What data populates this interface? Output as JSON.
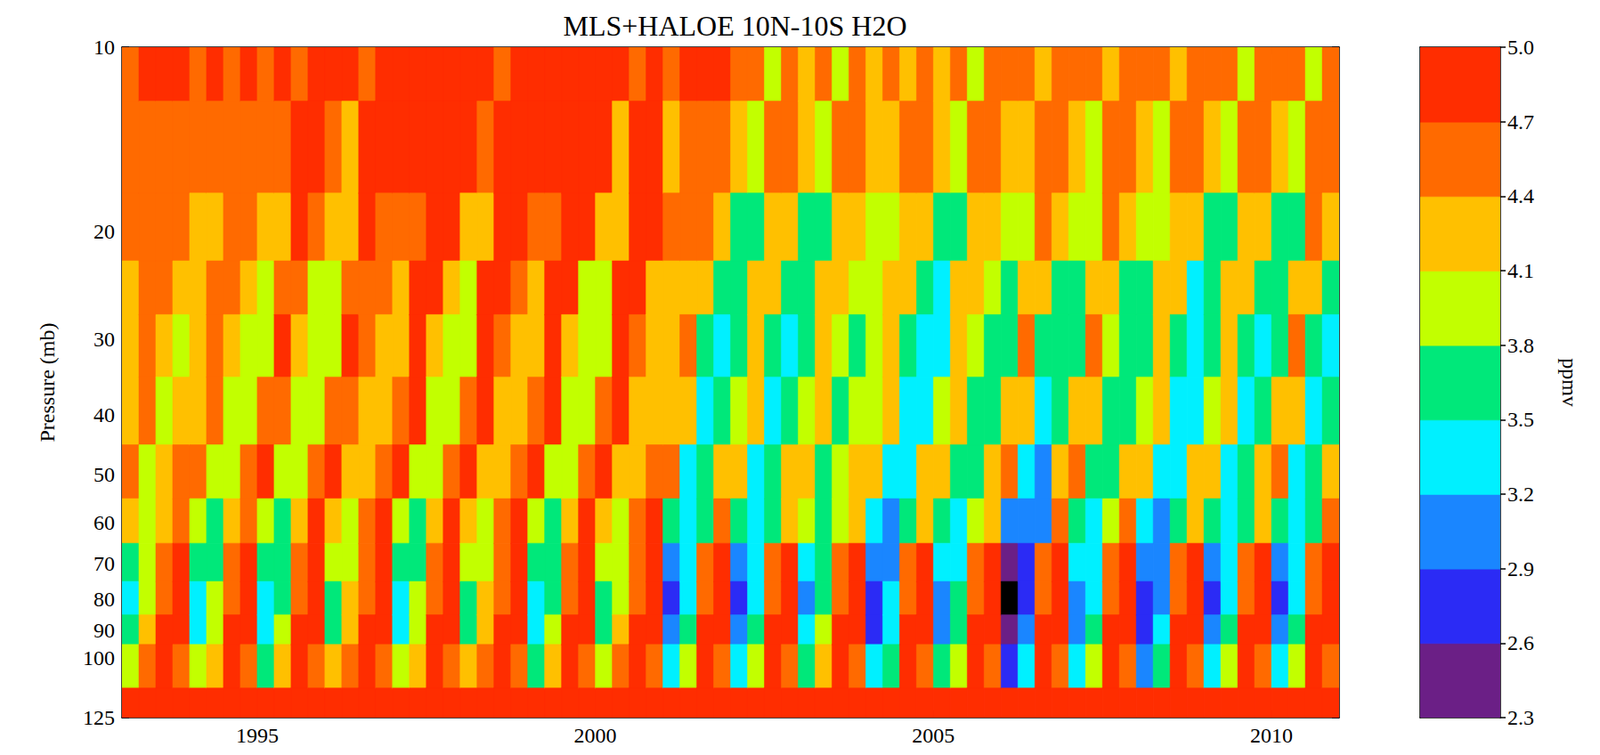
{
  "chart_data": {
    "type": "heatmap",
    "title": "MLS+HALOE 10N-10S H2O",
    "y_label": "Pressure (mb)",
    "log": "y",
    "grid": false,
    "xlim": [
      1993,
      2011
    ],
    "xticks": [
      1995,
      2000,
      2005,
      2010
    ],
    "ylim": [
      125,
      10
    ],
    "yticks": [
      10,
      20,
      30,
      40,
      50,
      60,
      70,
      80,
      90,
      100,
      125
    ],
    "x": [
      1993,
      1993.25,
      1993.5,
      1993.75,
      1994,
      1994.25,
      1994.5,
      1994.75,
      1995,
      1995.25,
      1995.5,
      1995.75,
      1996,
      1996.25,
      1996.5,
      1996.75,
      1997,
      1997.25,
      1997.5,
      1997.75,
      1998,
      1998.25,
      1998.5,
      1998.75,
      1999,
      1999.25,
      1999.5,
      1999.75,
      2000,
      2000.25,
      2000.5,
      2000.75,
      2001,
      2001.25,
      2001.5,
      2001.75,
      2002,
      2002.25,
      2002.5,
      2002.75,
      2003,
      2003.25,
      2003.5,
      2003.75,
      2004,
      2004.25,
      2004.5,
      2004.75,
      2005,
      2005.25,
      2005.5,
      2005.75,
      2006,
      2006.25,
      2006.5,
      2006.75,
      2007,
      2007.25,
      2007.5,
      2007.75,
      2008,
      2008.25,
      2008.5,
      2008.75,
      2009,
      2009.25,
      2009.5,
      2009.75,
      2010,
      2010.25,
      2010.5,
      2010.75
    ],
    "y": [
      10,
      15,
      20,
      25,
      30,
      40,
      50,
      60,
      70,
      80,
      90,
      100,
      125
    ],
    "values": [
      [
        4.5,
        4.5,
        4.4,
        4.2,
        4.2,
        4.3,
        4.6,
        4.1,
        3.7,
        3.4,
        3.5,
        3.9,
        5.2
      ],
      [
        4.7,
        4.6,
        4.4,
        4.5,
        4.6,
        4.5,
        4.0,
        3.8,
        3.8,
        3.9,
        4.1,
        4.4,
        5.2
      ],
      [
        4.7,
        4.6,
        4.6,
        4.5,
        4.3,
        4.0,
        4.1,
        4.3,
        4.4,
        4.6,
        4.8,
        4.9,
        5.2
      ],
      [
        4.7,
        4.6,
        4.5,
        4.2,
        4.0,
        4.1,
        4.4,
        4.6,
        4.7,
        4.8,
        4.9,
        4.6,
        5.2
      ],
      [
        4.5,
        4.5,
        4.3,
        4.1,
        4.1,
        4.3,
        4.6,
        4.0,
        3.6,
        3.3,
        3.4,
        3.8,
        5.2
      ],
      [
        4.7,
        4.5,
        4.3,
        4.5,
        4.6,
        4.5,
        3.9,
        3.7,
        3.7,
        3.8,
        4.0,
        4.3,
        5.2
      ],
      [
        4.6,
        4.6,
        4.6,
        4.5,
        4.2,
        3.9,
        4.0,
        4.2,
        4.4,
        4.6,
        4.8,
        4.9,
        5.2
      ],
      [
        4.7,
        4.6,
        4.5,
        4.1,
        3.9,
        4.0,
        4.4,
        4.6,
        4.7,
        4.8,
        4.9,
        4.6,
        5.2
      ],
      [
        4.6,
        4.6,
        4.2,
        4.0,
        4.0,
        4.4,
        4.7,
        3.9,
        3.5,
        3.2,
        3.3,
        3.7,
        5.2
      ],
      [
        4.8,
        4.4,
        4.2,
        4.6,
        4.7,
        4.6,
        3.8,
        3.6,
        3.6,
        3.7,
        3.9,
        4.2,
        5.2
      ],
      [
        4.5,
        4.7,
        4.7,
        4.6,
        4.1,
        3.8,
        3.9,
        4.1,
        4.4,
        4.6,
        4.8,
        4.9,
        5.2
      ],
      [
        4.8,
        4.7,
        4.6,
        4.0,
        3.8,
        3.9,
        4.5,
        4.7,
        4.7,
        4.8,
        4.9,
        4.6,
        5.2
      ],
      [
        4.7,
        4.6,
        4.1,
        3.9,
        3.9,
        4.4,
        4.7,
        4.3,
        3.9,
        3.6,
        3.7,
        4.1,
        5.2
      ],
      [
        4.9,
        4.3,
        4.1,
        4.6,
        4.7,
        4.6,
        4.2,
        4.0,
        4.0,
        4.1,
        4.3,
        4.6,
        5.2
      ],
      [
        4.4,
        4.8,
        4.7,
        4.6,
        4.5,
        4.2,
        4.3,
        4.5,
        4.4,
        4.6,
        4.8,
        4.9,
        5.2
      ],
      [
        4.9,
        4.8,
        4.6,
        4.4,
        4.2,
        4.3,
        4.5,
        4.7,
        4.7,
        4.8,
        4.9,
        4.6,
        5.2
      ],
      [
        4.7,
        4.7,
        4.5,
        4.3,
        4.3,
        4.5,
        4.8,
        4.0,
        3.6,
        3.3,
        3.4,
        3.8,
        5.2
      ],
      [
        4.9,
        4.7,
        4.5,
        4.7,
        4.8,
        4.7,
        3.9,
        3.7,
        3.7,
        3.8,
        4.0,
        4.3,
        5.2
      ],
      [
        4.8,
        4.8,
        4.8,
        4.7,
        4.2,
        3.9,
        4.0,
        4.2,
        4.4,
        4.6,
        4.8,
        4.9,
        5.2
      ],
      [
        4.9,
        4.8,
        4.7,
        4.1,
        3.9,
        4.0,
        4.6,
        4.8,
        4.7,
        4.8,
        4.9,
        4.6,
        5.2
      ],
      [
        4.7,
        4.7,
        4.2,
        4.0,
        4.0,
        4.5,
        4.8,
        4.3,
        3.9,
        3.6,
        3.7,
        4.1,
        5.2
      ],
      [
        4.9,
        4.4,
        4.2,
        4.7,
        4.8,
        4.7,
        4.2,
        4.0,
        4.0,
        4.1,
        4.3,
        4.6,
        5.2
      ],
      [
        4.5,
        4.8,
        4.8,
        4.7,
        4.5,
        4.2,
        4.3,
        4.5,
        4.4,
        4.6,
        4.8,
        4.9,
        5.2
      ],
      [
        4.9,
        4.8,
        4.7,
        4.4,
        4.2,
        4.3,
        4.6,
        4.8,
        4.7,
        4.8,
        4.9,
        4.6,
        5.2
      ],
      [
        4.7,
        4.7,
        4.5,
        4.3,
        4.3,
        4.5,
        4.8,
        3.9,
        3.5,
        3.2,
        3.3,
        3.7,
        5.2
      ],
      [
        4.9,
        4.7,
        4.5,
        4.7,
        4.8,
        4.7,
        3.8,
        3.6,
        3.6,
        3.7,
        3.9,
        4.2,
        5.2
      ],
      [
        4.8,
        4.8,
        4.8,
        4.7,
        4.1,
        3.8,
        3.9,
        4.1,
        4.4,
        4.6,
        4.8,
        4.9,
        5.2
      ],
      [
        4.9,
        4.8,
        4.7,
        4.0,
        3.8,
        3.9,
        4.6,
        4.8,
        4.7,
        4.8,
        4.9,
        4.6,
        5.2
      ],
      [
        4.7,
        4.7,
        4.1,
        3.9,
        3.9,
        4.5,
        4.8,
        4.2,
        3.8,
        3.5,
        3.6,
        4.0,
        5.2
      ],
      [
        4.9,
        4.3,
        4.1,
        4.7,
        4.8,
        4.7,
        4.1,
        3.9,
        3.9,
        4.0,
        4.2,
        4.5,
        5.2
      ],
      [
        4.4,
        4.8,
        4.8,
        4.7,
        4.4,
        4.1,
        4.2,
        4.4,
        4.4,
        4.6,
        4.8,
        4.9,
        5.2
      ],
      [
        4.9,
        4.8,
        4.7,
        4.3,
        4.1,
        4.2,
        4.6,
        4.8,
        4.7,
        4.8,
        4.9,
        4.5,
        5.2
      ],
      [
        4.5,
        4.3,
        4.4,
        4.2,
        4.2,
        4.1,
        4.4,
        3.5,
        3.1,
        2.8,
        2.9,
        3.3,
        5.2
      ],
      [
        4.7,
        4.6,
        4.4,
        4.3,
        4.4,
        4.3,
        3.4,
        3.2,
        3.2,
        3.3,
        3.5,
        3.8,
        5.2
      ],
      [
        4.7,
        4.6,
        4.4,
        4.3,
        3.7,
        3.4,
        3.5,
        3.7,
        4.4,
        4.6,
        4.8,
        4.9,
        5.2
      ],
      [
        4.7,
        4.6,
        4.3,
        3.6,
        3.4,
        3.5,
        4.2,
        4.4,
        4.7,
        4.8,
        4.9,
        4.6,
        5.2
      ],
      [
        4.4,
        4.2,
        3.7,
        3.5,
        3.5,
        4.0,
        4.3,
        3.5,
        3.1,
        2.8,
        2.9,
        3.3,
        5.2
      ],
      [
        4.6,
        3.9,
        3.7,
        4.2,
        4.3,
        4.2,
        3.4,
        3.2,
        3.2,
        3.3,
        3.5,
        3.8,
        5.2
      ],
      [
        4.0,
        4.5,
        4.3,
        4.2,
        3.7,
        3.4,
        3.5,
        3.7,
        4.4,
        4.6,
        4.8,
        4.9,
        5.2
      ],
      [
        4.6,
        4.5,
        4.2,
        3.6,
        3.4,
        3.5,
        4.1,
        4.3,
        4.7,
        4.8,
        4.9,
        4.6,
        5.2
      ],
      [
        4.3,
        4.2,
        3.7,
        3.5,
        3.5,
        4.0,
        4.3,
        3.8,
        3.4,
        3.1,
        3.2,
        3.6,
        5.2
      ],
      [
        4.5,
        3.9,
        3.7,
        4.2,
        4.3,
        4.2,
        3.7,
        3.5,
        3.5,
        3.6,
        3.8,
        4.1,
        5.2
      ],
      [
        4.0,
        4.4,
        4.3,
        4.2,
        4.0,
        3.7,
        3.8,
        4.0,
        4.4,
        4.6,
        4.8,
        4.9,
        5.2
      ],
      [
        4.5,
        4.4,
        4.2,
        3.9,
        3.7,
        3.8,
        4.1,
        4.3,
        4.7,
        4.8,
        4.9,
        4.6,
        5.2
      ],
      [
        4.3,
        4.2,
        4.0,
        3.8,
        3.8,
        4.0,
        4.3,
        3.4,
        3.0,
        2.7,
        2.8,
        3.2,
        5.2
      ],
      [
        4.5,
        4.2,
        4.0,
        4.2,
        4.3,
        4.2,
        3.3,
        3.1,
        3.1,
        3.2,
        3.4,
        3.7,
        5.2
      ],
      [
        4.3,
        4.4,
        4.3,
        4.2,
        3.6,
        3.3,
        3.4,
        3.6,
        4.4,
        4.6,
        4.8,
        4.9,
        5.2
      ],
      [
        4.5,
        4.4,
        4.2,
        3.5,
        3.3,
        3.4,
        4.1,
        4.3,
        4.7,
        4.8,
        4.9,
        4.6,
        5.2
      ],
      [
        4.3,
        4.2,
        3.6,
        3.4,
        3.4,
        4.0,
        4.3,
        3.7,
        3.3,
        3.0,
        3.1,
        3.5,
        5.2
      ],
      [
        4.5,
        3.8,
        3.6,
        4.2,
        4.3,
        4.2,
        3.6,
        3.4,
        3.4,
        3.5,
        3.7,
        4.0,
        5.2
      ],
      [
        3.9,
        4.4,
        4.3,
        4.2,
        3.9,
        3.6,
        3.7,
        3.9,
        4.4,
        4.6,
        4.8,
        4.9,
        5.2
      ],
      [
        4.5,
        4.4,
        4.2,
        3.8,
        3.6,
        3.7,
        4.1,
        4.3,
        4.7,
        4.8,
        4.9,
        4.6,
        5.2
      ],
      [
        4.4,
        4.3,
        3.9,
        3.7,
        3.7,
        4.1,
        4.4,
        2.9,
        2.5,
        2.2,
        2.3,
        2.7,
        5.2
      ],
      [
        4.6,
        4.1,
        3.9,
        4.3,
        4.4,
        4.3,
        3.2,
        2.9,
        2.7,
        2.7,
        2.9,
        3.2,
        5.2
      ],
      [
        4.2,
        4.5,
        4.4,
        4.3,
        3.6,
        3.3,
        3.1,
        3.0,
        4.4,
        4.6,
        4.8,
        4.9,
        5.2
      ],
      [
        4.6,
        4.5,
        4.3,
        3.7,
        3.6,
        3.5,
        4.2,
        4.4,
        4.7,
        4.8,
        4.9,
        4.6,
        5.2
      ],
      [
        4.4,
        4.3,
        3.8,
        3.6,
        3.6,
        4.1,
        4.4,
        3.6,
        3.2,
        2.9,
        3.0,
        3.4,
        5.2
      ],
      [
        4.6,
        4.0,
        3.8,
        4.3,
        4.4,
        4.3,
        3.5,
        3.3,
        3.3,
        3.4,
        3.6,
        3.9,
        5.2
      ],
      [
        4.1,
        4.5,
        4.4,
        4.3,
        3.8,
        3.5,
        3.6,
        3.8,
        4.4,
        4.6,
        4.8,
        4.9,
        5.2
      ],
      [
        4.6,
        4.5,
        4.3,
        3.7,
        3.5,
        3.6,
        4.2,
        4.4,
        4.7,
        4.8,
        4.9,
        4.6,
        5.2
      ],
      [
        4.4,
        4.2,
        3.8,
        3.6,
        3.6,
        4.0,
        4.3,
        3.3,
        2.9,
        2.6,
        2.7,
        3.1,
        5.2
      ],
      [
        4.6,
        4.0,
        3.8,
        4.2,
        4.3,
        4.2,
        3.2,
        3.0,
        3.0,
        3.1,
        3.3,
        3.6,
        5.2
      ],
      [
        4.1,
        4.5,
        4.3,
        4.2,
        3.5,
        3.2,
        3.3,
        3.5,
        4.4,
        4.6,
        4.8,
        4.9,
        5.2
      ],
      [
        4.6,
        4.5,
        4.2,
        3.4,
        3.2,
        3.3,
        4.1,
        4.3,
        4.7,
        4.8,
        4.9,
        4.6,
        5.2
      ],
      [
        4.4,
        4.2,
        3.7,
        3.5,
        3.5,
        4.0,
        4.3,
        3.5,
        3.1,
        2.8,
        2.9,
        3.3,
        5.2
      ],
      [
        4.6,
        3.9,
        3.7,
        4.2,
        4.3,
        4.2,
        3.4,
        3.2,
        3.2,
        3.3,
        3.5,
        3.8,
        5.2
      ],
      [
        4.0,
        4.5,
        4.3,
        4.2,
        3.7,
        3.4,
        3.5,
        3.7,
        4.4,
        4.6,
        4.8,
        4.9,
        5.2
      ],
      [
        4.6,
        4.5,
        4.2,
        3.6,
        3.4,
        3.5,
        4.1,
        4.3,
        4.7,
        4.8,
        4.9,
        4.6,
        5.2
      ],
      [
        4.4,
        4.3,
        3.7,
        3.5,
        3.5,
        4.1,
        4.4,
        3.5,
        3.1,
        2.8,
        2.9,
        3.3,
        5.2
      ],
      [
        4.6,
        3.9,
        3.7,
        4.3,
        4.4,
        4.3,
        3.4,
        3.2,
        3.2,
        3.3,
        3.5,
        3.8,
        5.2
      ],
      [
        4.0,
        4.5,
        4.4,
        4.3,
        3.7,
        3.4,
        3.5,
        3.7,
        4.4,
        4.6,
        4.8,
        4.9,
        5.2
      ],
      [
        4.6,
        4.5,
        4.3,
        3.6,
        3.4,
        3.5,
        4.2,
        4.4,
        4.7,
        4.8,
        4.9,
        4.6,
        5.2
      ]
    ],
    "colorbar": {
      "label": "ppmv",
      "range": [
        2.3,
        5.0
      ],
      "ticks": [
        2.3,
        2.6,
        2.9,
        3.2,
        3.5,
        3.8,
        4.1,
        4.4,
        4.7,
        {
          "value": 5.0,
          "label": "5.0"
        }
      ],
      "colors": [
        "#6b1f86",
        "#2b2bf5",
        "#1a86ff",
        "#00f0ff",
        "#00e87a",
        "#c2ff00",
        "#ffc000",
        "#ff6a00",
        "#ff2d00"
      ]
    }
  }
}
